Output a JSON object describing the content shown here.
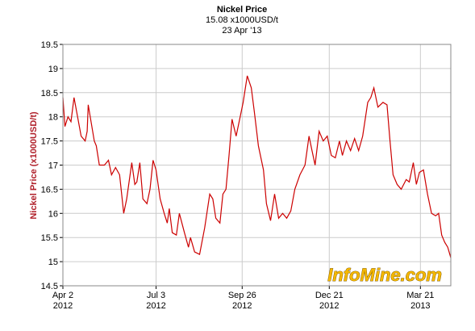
{
  "chart_data": {
    "type": "line",
    "title": "Nickel Price",
    "subtitle": "15.08 x1000USD/t",
    "date": "23 Apr '13",
    "y_label": "Nickel Price (x1000USD/t)",
    "watermark": "InfoMine.com",
    "xlim": [
      0,
      383
    ],
    "xticks": [
      {
        "value": 0,
        "label": "Apr 2",
        "year": "2012"
      },
      {
        "value": 92,
        "label": "Jul 3",
        "year": "2012"
      },
      {
        "value": 177,
        "label": "Sep 26",
        "year": "2012"
      },
      {
        "value": 263,
        "label": "Dec 21",
        "year": "2012"
      },
      {
        "value": 353,
        "label": "Mar 21",
        "year": "2013"
      }
    ],
    "ylim": [
      14.5,
      19.5
    ],
    "yticks": [
      14.5,
      15,
      15.5,
      16,
      16.5,
      17,
      17.5,
      18,
      18.5,
      19,
      19.5
    ],
    "grid": true,
    "series": [
      {
        "name": "Nickel Price",
        "color": "#cc0000",
        "x": [
          0,
          2,
          5,
          8,
          11,
          18,
          22,
          24,
          25,
          31,
          33,
          36,
          41,
          45,
          48,
          52,
          56,
          60,
          63,
          68,
          71,
          73,
          76,
          79,
          83,
          86,
          89,
          92,
          96,
          100,
          103,
          105,
          108,
          112,
          115,
          120,
          124,
          126,
          130,
          135,
          140,
          145,
          148,
          151,
          155,
          158,
          161,
          164,
          167,
          171,
          175,
          178,
          182,
          186,
          189,
          193,
          198,
          201,
          205,
          209,
          213,
          217,
          221,
          225,
          229,
          234,
          239,
          243,
          246,
          249,
          253,
          257,
          261,
          265,
          269,
          273,
          276,
          280,
          284,
          288,
          292,
          296,
          301,
          304,
          307,
          311,
          316,
          320,
          323,
          326,
          330,
          334,
          339,
          342,
          346,
          349,
          352,
          356,
          360,
          364,
          368,
          371,
          374,
          377,
          380,
          383
        ],
        "values": [
          18.4,
          17.8,
          18.0,
          17.9,
          18.4,
          17.6,
          17.5,
          17.7,
          18.25,
          17.5,
          17.4,
          17.0,
          17.0,
          17.1,
          16.8,
          16.95,
          16.8,
          16.0,
          16.3,
          17.05,
          16.6,
          16.65,
          17.05,
          16.3,
          16.2,
          16.5,
          17.1,
          16.9,
          16.3,
          16.0,
          15.8,
          16.1,
          15.6,
          15.55,
          16.0,
          15.6,
          15.3,
          15.5,
          15.2,
          15.15,
          15.7,
          16.4,
          16.3,
          15.9,
          15.8,
          16.4,
          16.5,
          17.2,
          17.95,
          17.6,
          18.0,
          18.3,
          18.85,
          18.6,
          18.1,
          17.4,
          16.9,
          16.2,
          15.85,
          16.4,
          15.9,
          16.0,
          15.9,
          16.05,
          16.5,
          16.8,
          17.0,
          17.6,
          17.3,
          17.0,
          17.7,
          17.5,
          17.6,
          17.2,
          17.15,
          17.5,
          17.2,
          17.5,
          17.3,
          17.55,
          17.3,
          17.6,
          18.3,
          18.4,
          18.6,
          18.2,
          18.3,
          18.25,
          17.5,
          16.8,
          16.6,
          16.5,
          16.7,
          16.65,
          17.05,
          16.6,
          16.85,
          16.9,
          16.4,
          16.0,
          15.95,
          16.0,
          15.55,
          15.4,
          15.3,
          15.08
        ]
      }
    ]
  }
}
